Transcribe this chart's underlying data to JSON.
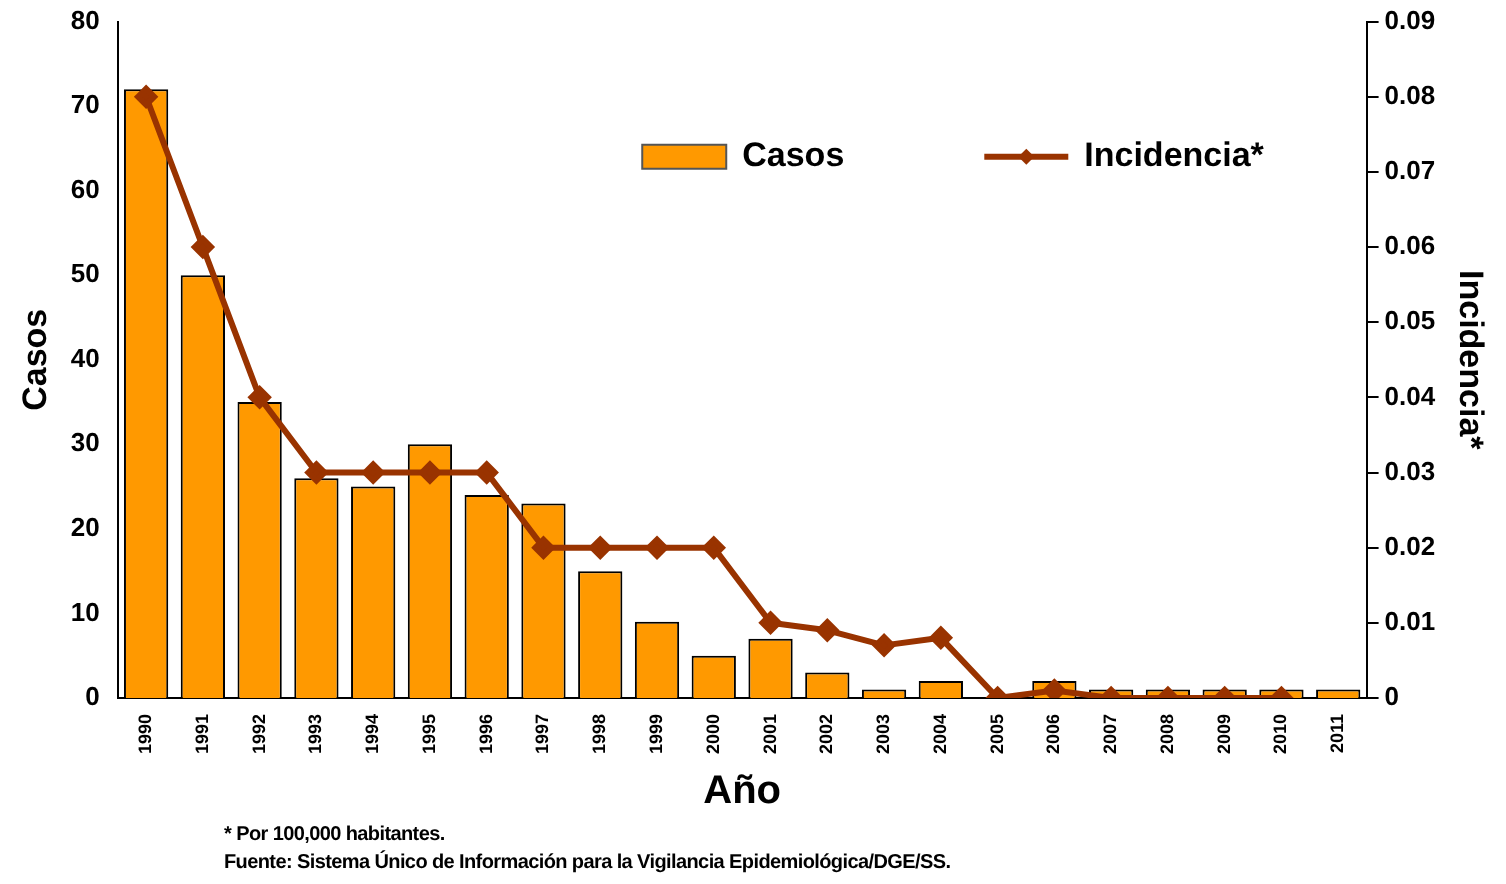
{
  "chart_data": {
    "type": "bar",
    "xlabel": "Año",
    "ylabel": "Casos",
    "y2label": "Incidencia*",
    "categories": [
      "1990",
      "1991",
      "1992",
      "1993",
      "1994",
      "1995",
      "1996",
      "1997",
      "1998",
      "1999",
      "2000",
      "2001",
      "2002",
      "2003",
      "2004",
      "2005",
      "2006",
      "2007",
      "2008",
      "2009",
      "2010",
      "2011"
    ],
    "series": [
      {
        "name": "Casos",
        "color": "#ff9900",
        "values": [
          72,
          50,
          35,
          26,
          25,
          30,
          24,
          23,
          15,
          9,
          5,
          7,
          3,
          1,
          2,
          0,
          2,
          1,
          1,
          1,
          1,
          1
        ]
      },
      {
        "name": "Incidencia*",
        "type": "line",
        "axis": "y2",
        "color": "#993300",
        "marker": "diamond",
        "values": [
          0.08,
          0.06,
          0.04,
          0.03,
          0.03,
          0.03,
          0.03,
          0.02,
          0.02,
          0.02,
          0.02,
          0.01,
          0.009,
          0.007,
          0.008,
          0,
          0.001,
          0,
          0,
          0,
          0,
          null
        ]
      }
    ],
    "ylim": [
      0,
      80
    ],
    "yticks": [
      0,
      10,
      20,
      30,
      40,
      50,
      60,
      70,
      80
    ],
    "y2lim": [
      0,
      0.09
    ],
    "y2ticks": [
      0,
      0.01,
      0.02,
      0.03,
      0.04,
      0.05,
      0.06,
      0.07,
      0.08,
      0.09
    ],
    "grid": false,
    "legend": "top right",
    "annotations": [
      "* Por 100,000 habitantes.",
      "Fuente: Sistema Único de Información para la Vigilancia Epidemiológica/DGE/SS."
    ]
  }
}
